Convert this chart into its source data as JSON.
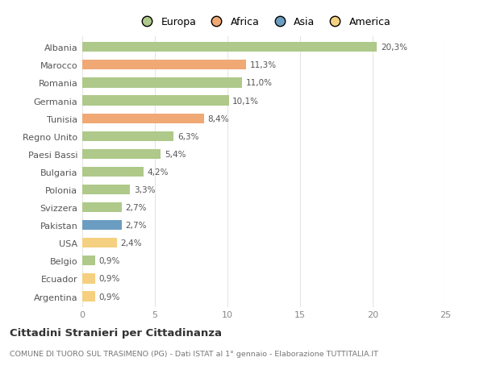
{
  "title": "Cittadini Stranieri per Cittadinanza",
  "subtitle": "COMUNE DI TUORO SUL TRASIMENO (PG) - Dati ISTAT al 1° gennaio - Elaborazione TUTTITALIA.IT",
  "categories": [
    "Albania",
    "Marocco",
    "Romania",
    "Germania",
    "Tunisia",
    "Regno Unito",
    "Paesi Bassi",
    "Bulgaria",
    "Polonia",
    "Svizzera",
    "Pakistan",
    "USA",
    "Belgio",
    "Ecuador",
    "Argentina"
  ],
  "values": [
    20.3,
    11.3,
    11.0,
    10.1,
    8.4,
    6.3,
    5.4,
    4.2,
    3.3,
    2.7,
    2.7,
    2.4,
    0.9,
    0.9,
    0.9
  ],
  "labels": [
    "20,3%",
    "11,3%",
    "11,0%",
    "10,1%",
    "8,4%",
    "6,3%",
    "5,4%",
    "4,2%",
    "3,3%",
    "2,7%",
    "2,7%",
    "2,4%",
    "0,9%",
    "0,9%",
    "0,9%"
  ],
  "colors": [
    "#aec98a",
    "#f0a875",
    "#aec98a",
    "#aec98a",
    "#f0a875",
    "#aec98a",
    "#aec98a",
    "#aec98a",
    "#aec98a",
    "#aec98a",
    "#6b9dc2",
    "#f5d080",
    "#aec98a",
    "#f5d080",
    "#f5d080"
  ],
  "legend_labels": [
    "Europa",
    "Africa",
    "Asia",
    "America"
  ],
  "legend_colors": [
    "#aec98a",
    "#f0a875",
    "#6b9dc2",
    "#f5d080"
  ],
  "xlim": [
    0,
    25
  ],
  "xticks": [
    0,
    5,
    10,
    15,
    20,
    25
  ],
  "background_color": "#ffffff",
  "grid_color": "#e5e5e5",
  "bar_height": 0.55
}
